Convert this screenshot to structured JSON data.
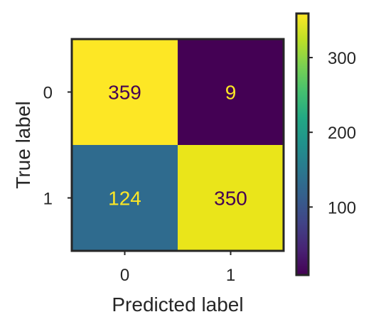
{
  "chart_data": {
    "type": "heatmap",
    "title": "",
    "xlabel": "Predicted label",
    "ylabel": "True label",
    "x_categories": [
      "0",
      "1"
    ],
    "y_categories": [
      "0",
      "1"
    ],
    "matrix": [
      [
        359,
        9
      ],
      [
        124,
        350
      ]
    ],
    "colormap": "viridis",
    "colorbar": {
      "range": [
        9,
        359
      ],
      "ticks": [
        100,
        200,
        300
      ],
      "tick_labels": [
        "100",
        "200",
        "300"
      ]
    },
    "grid": false,
    "legend": "colorbar-right"
  },
  "colors": {
    "cell_0_0": "#fde725",
    "cell_0_1": "#440154",
    "cell_1_0": "#2f6b8e",
    "cell_1_1": "#eae51a",
    "text_on_dark": "#fde725",
    "text_on_light": "#440154",
    "frame": "#262626",
    "label_text": "#262626"
  }
}
